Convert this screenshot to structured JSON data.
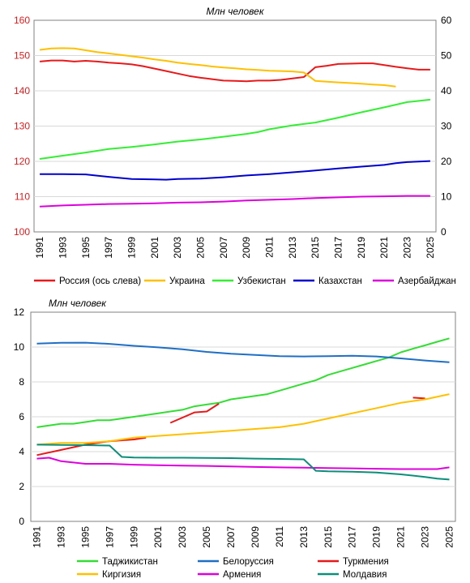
{
  "chart_data": [
    {
      "type": "line",
      "title": "Млн человек",
      "x_labels": [
        "1991",
        "1993",
        "1995",
        "1997",
        "1999",
        "2001",
        "2003",
        "2005",
        "2007",
        "2009",
        "2011",
        "2013",
        "2015",
        "2017",
        "2019",
        "2021",
        "2023",
        "2025"
      ],
      "y_left_ticks": [
        "100",
        "110",
        "120",
        "130",
        "140",
        "150",
        "160"
      ],
      "y_right_ticks": [
        "0",
        "10",
        "20",
        "30",
        "40",
        "50",
        "60"
      ],
      "ylim_left": [
        100,
        160
      ],
      "ylim_right": [
        0,
        60
      ],
      "grid": true,
      "legend_position": "bottom",
      "series": [
        {
          "name": "Россия (ось слева)",
          "axis": "left",
          "color": "#e8191b",
          "x": [
            1991,
            1992,
            1993,
            1994,
            1995,
            1996,
            1997,
            1998,
            1999,
            2000,
            2001,
            2002,
            2003,
            2004,
            2005,
            2006,
            2007,
            2008,
            2009,
            2010,
            2011,
            2012,
            2013,
            2014,
            2015,
            2016,
            2017,
            2018,
            2019,
            2020,
            2021,
            2022,
            2023,
            2024,
            2025
          ],
          "y": [
            148.3,
            148.6,
            148.6,
            148.3,
            148.5,
            148.3,
            148.0,
            147.8,
            147.5,
            147.0,
            146.3,
            145.6,
            144.9,
            144.2,
            143.7,
            143.3,
            142.9,
            142.8,
            142.7,
            142.9,
            142.9,
            143.1,
            143.5,
            143.9,
            146.7,
            147.1,
            147.6,
            147.7,
            147.8,
            147.8,
            147.3,
            146.8,
            146.4,
            146.0,
            146.0
          ]
        },
        {
          "name": "Украина",
          "axis": "right",
          "color": "#ffc000",
          "x": [
            1991,
            1992,
            1993,
            1994,
            1995,
            1996,
            1997,
            1998,
            1999,
            2000,
            2001,
            2002,
            2003,
            2004,
            2005,
            2006,
            2007,
            2008,
            2009,
            2010,
            2011,
            2012,
            2013,
            2014,
            2015,
            2016,
            2017,
            2018,
            2019,
            2020,
            2021,
            2022
          ],
          "y": [
            51.6,
            52.0,
            52.1,
            52.0,
            51.5,
            51.0,
            50.6,
            50.2,
            49.8,
            49.4,
            48.9,
            48.5,
            48.0,
            47.6,
            47.3,
            46.9,
            46.6,
            46.4,
            46.1,
            45.9,
            45.7,
            45.6,
            45.5,
            45.2,
            42.8,
            42.6,
            42.4,
            42.2,
            42.0,
            41.8,
            41.6,
            41.2
          ]
        },
        {
          "name": "Узбекистан",
          "axis": "right",
          "color": "#33ee33",
          "x": [
            1991,
            1993,
            1995,
            1997,
            1999,
            2001,
            2003,
            2005,
            2007,
            2009,
            2010,
            2011,
            2013,
            2015,
            2017,
            2019,
            2021,
            2023,
            2025
          ],
          "y": [
            20.7,
            21.6,
            22.5,
            23.5,
            24.1,
            24.8,
            25.6,
            26.2,
            27.0,
            27.8,
            28.3,
            29.1,
            30.2,
            31.0,
            32.4,
            33.9,
            35.3,
            36.8,
            37.5
          ]
        },
        {
          "name": "Казахстан",
          "axis": "right",
          "color": "#0000cc",
          "x": [
            1991,
            1993,
            1995,
            1997,
            1999,
            2001,
            2002,
            2003,
            2005,
            2007,
            2009,
            2011,
            2013,
            2015,
            2017,
            2019,
            2021,
            2022,
            2023,
            2025
          ],
          "y": [
            16.4,
            16.4,
            16.3,
            15.6,
            15.0,
            14.9,
            14.8,
            15.0,
            15.1,
            15.5,
            16.0,
            16.4,
            16.9,
            17.4,
            18.0,
            18.5,
            19.0,
            19.5,
            19.8,
            20.1
          ]
        },
        {
          "name": "Азербайджан",
          "axis": "right",
          "color": "#dd00dd",
          "x": [
            1991,
            1993,
            1995,
            1997,
            1999,
            2001,
            2003,
            2005,
            2007,
            2009,
            2011,
            2013,
            2015,
            2017,
            2019,
            2021,
            2023,
            2025
          ],
          "y": [
            7.2,
            7.5,
            7.7,
            7.9,
            8.0,
            8.1,
            8.3,
            8.4,
            8.6,
            8.9,
            9.1,
            9.3,
            9.6,
            9.8,
            10.0,
            10.1,
            10.2,
            10.2
          ]
        }
      ]
    },
    {
      "type": "line",
      "title": "Млн человек",
      "x_labels": [
        "1991",
        "1993",
        "1995",
        "1997",
        "1999",
        "2001",
        "2003",
        "2005",
        "2007",
        "2009",
        "2011",
        "2013",
        "2015",
        "2017",
        "2019",
        "2021",
        "2023",
        "2025"
      ],
      "y_ticks": [
        "0",
        "2",
        "4",
        "6",
        "8",
        "10",
        "12"
      ],
      "ylim": [
        0,
        12
      ],
      "grid": true,
      "legend_position": "bottom",
      "series": [
        {
          "name": "Таджикистан",
          "color": "#33dd33",
          "x": [
            1991,
            1992,
            1993,
            1994,
            1995,
            1996,
            1997,
            1998,
            1999,
            2000,
            2001,
            2002,
            2003,
            2004,
            2005,
            2006,
            2007,
            2008,
            2009,
            2010,
            2011,
            2012,
            2013,
            2014,
            2015,
            2016,
            2017,
            2018,
            2019,
            2020,
            2021,
            2022,
            2023,
            2024,
            2025
          ],
          "y": [
            5.4,
            5.5,
            5.6,
            5.6,
            5.7,
            5.8,
            5.8,
            5.9,
            6.0,
            6.1,
            6.2,
            6.3,
            6.4,
            6.6,
            6.7,
            6.8,
            7.0,
            7.1,
            7.2,
            7.3,
            7.5,
            7.7,
            7.9,
            8.1,
            8.4,
            8.6,
            8.8,
            9.0,
            9.2,
            9.4,
            9.7,
            9.9,
            10.1,
            10.3,
            10.5
          ]
        },
        {
          "name": "Белоруссия",
          "color": "#1f6fc5",
          "x": [
            1991,
            1993,
            1995,
            1997,
            1999,
            2001,
            2003,
            2005,
            2007,
            2009,
            2011,
            2013,
            2015,
            2017,
            2019,
            2021,
            2023,
            2025
          ],
          "y": [
            10.2,
            10.24,
            10.25,
            10.18,
            10.07,
            9.98,
            9.87,
            9.72,
            9.62,
            9.55,
            9.48,
            9.46,
            9.48,
            9.5,
            9.46,
            9.35,
            9.23,
            9.13
          ]
        },
        {
          "name": "Туркмения",
          "color": "#e8191b",
          "segments": [
            {
              "x": [
                1991,
                1993,
                1995,
                1997,
                1999,
                2000
              ],
              "y": [
                3.8,
                4.1,
                4.4,
                4.6,
                4.7,
                4.8
              ]
            },
            {
              "x": [
                2002,
                2004,
                2005,
                2006
              ],
              "y": [
                5.65,
                6.25,
                6.3,
                6.75
              ]
            },
            {
              "x": [
                2022,
                2023
              ],
              "y": [
                7.1,
                7.05
              ]
            }
          ]
        },
        {
          "name": "Киргизия",
          "color": "#ffc000",
          "x": [
            1991,
            1993,
            1995,
            1997,
            1999,
            2001,
            2003,
            2005,
            2007,
            2009,
            2011,
            2013,
            2015,
            2017,
            2019,
            2021,
            2023,
            2025
          ],
          "y": [
            4.4,
            4.5,
            4.5,
            4.6,
            4.8,
            4.9,
            5.0,
            5.1,
            5.2,
            5.3,
            5.4,
            5.6,
            5.9,
            6.2,
            6.5,
            6.8,
            7.0,
            7.3
          ]
        },
        {
          "name": "Армения",
          "color": "#dd00dd",
          "x": [
            1991,
            1992,
            1993,
            1995,
            1997,
            1999,
            2001,
            2003,
            2005,
            2007,
            2009,
            2011,
            2013,
            2015,
            2017,
            2019,
            2021,
            2023,
            2024,
            2025
          ],
          "y": [
            3.6,
            3.65,
            3.45,
            3.3,
            3.3,
            3.25,
            3.22,
            3.2,
            3.18,
            3.15,
            3.12,
            3.1,
            3.08,
            3.06,
            3.04,
            3.02,
            3.0,
            3.0,
            3.0,
            3.1
          ]
        },
        {
          "name": "Молдавия",
          "color": "#0b8f7a",
          "x": [
            1991,
            1993,
            1995,
            1997,
            1998,
            1999,
            2001,
            2003,
            2005,
            2007,
            2009,
            2011,
            2013,
            2014,
            2015,
            2017,
            2019,
            2021,
            2023,
            2024,
            2025
          ],
          "y": [
            4.4,
            4.38,
            4.37,
            4.35,
            3.7,
            3.66,
            3.65,
            3.65,
            3.64,
            3.63,
            3.6,
            3.58,
            3.56,
            2.9,
            2.87,
            2.85,
            2.8,
            2.7,
            2.55,
            2.45,
            2.4
          ]
        }
      ]
    }
  ]
}
